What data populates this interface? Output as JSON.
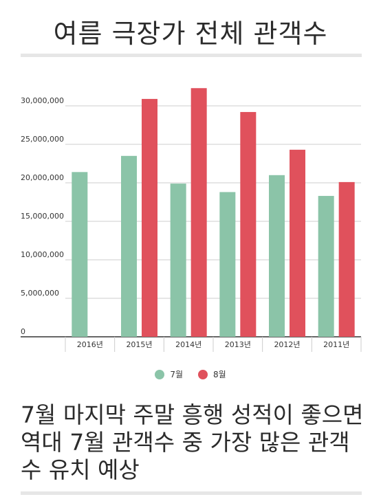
{
  "page": {
    "title": "여름 극장가 전체 관객수",
    "headline": "7월 마지막 주말 흥행 성적이 좋으면 역대 7월 관객수 중 가장 많은 관객수 유치 예상"
  },
  "colors": {
    "july": "#8bc4a8",
    "august": "#e0515c",
    "grid": "#cccccc",
    "axis": "#333333"
  },
  "chart_data": {
    "type": "bar",
    "categories": [
      "2016년",
      "2015년",
      "2014년",
      "2013년",
      "2012년",
      "2011년"
    ],
    "series": [
      {
        "name": "7월",
        "values": [
          21400000,
          23500000,
          19900000,
          18800000,
          21000000,
          18300000
        ]
      },
      {
        "name": "8월",
        "values": [
          null,
          30900000,
          32300000,
          29200000,
          24300000,
          20100000
        ]
      }
    ],
    "y_ticks": [
      "0",
      "5,000,000",
      "10,000,000",
      "15,000,000",
      "20,000,000",
      "25,000,000",
      "30,000,000"
    ],
    "ylim": [
      0,
      35000000
    ],
    "grid": true,
    "legend_position": "bottom"
  }
}
